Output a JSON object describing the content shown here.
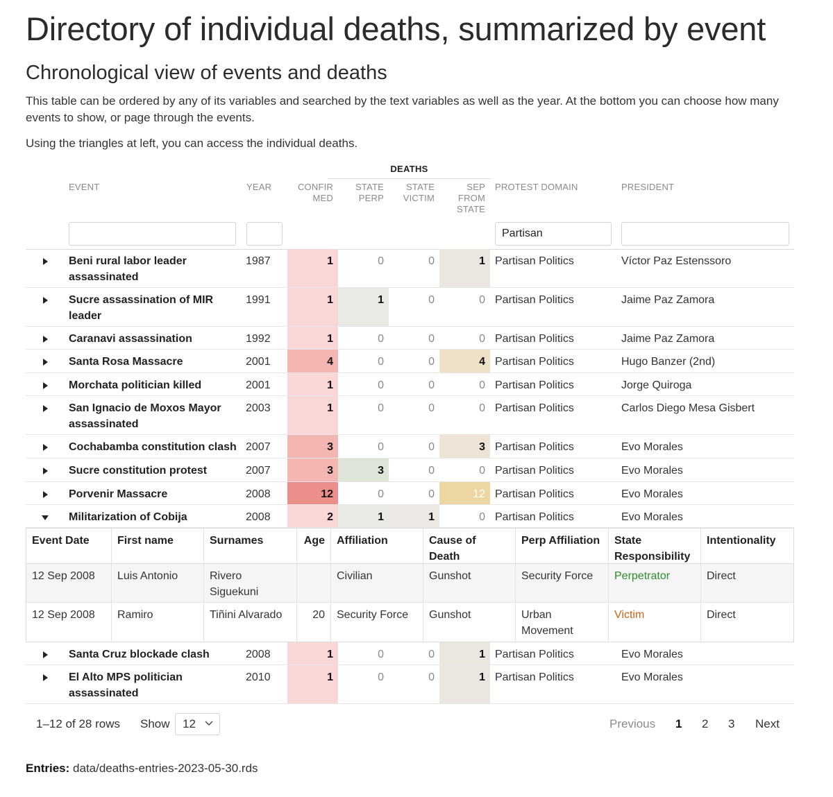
{
  "page": {
    "title": "Directory of individual deaths, summarized by event",
    "subtitle": "Chronological view of events and deaths",
    "intro": "This table can be ordered by any of its variables and searched by the text variables as well as the year. At the bottom you can choose how many events to show, or page through the events.",
    "hint": "Using the triangles at left, you can access the individual deaths."
  },
  "table": {
    "group_header": "DEATHS",
    "headers": {
      "event": "EVENT",
      "year": "YEAR",
      "confirmed": [
        "CONFIR",
        "MED"
      ],
      "state_perp": [
        "STATE",
        "PERP"
      ],
      "state_victim": [
        "STATE",
        "VICTIM"
      ],
      "sep_from_state": [
        "SEP",
        "FROM",
        "STATE"
      ],
      "protest_domain": "PROTEST DOMAIN",
      "president": "PRESIDENT"
    },
    "filters": {
      "event": "",
      "year": "",
      "protest_domain": "Partisan",
      "president": ""
    },
    "colors": {
      "confirmed_base": "#f9d7d6",
      "confirmed_mid": "#f3b6b3",
      "confirmed_high": "#ec8f8a",
      "perp_fill": "#e8eae6",
      "perp_fill_3": "#dde5d8",
      "victim_fill": "#ece8e4",
      "sep_fill": "#ebe6df",
      "sep_fill_3": "#ede4d6",
      "sep_fill_4": "#efe1c7",
      "sep_fill_12": "#ecd7a3",
      "perpetrator_text": "#2e8b2e",
      "victim_text": "#c8641b"
    },
    "rows": [
      {
        "event": [
          "Beni rural labor leader",
          "assassinated"
        ],
        "year": "1987",
        "confirmed": 1,
        "state_perp": 0,
        "state_victim": 0,
        "sep_from_state": 1,
        "protest_domain": "Partisan Politics",
        "president": "Víctor Paz Estenssoro",
        "expanded": false
      },
      {
        "event": [
          "Sucre assassination of MIR",
          "leader"
        ],
        "year": "1991",
        "confirmed": 1,
        "state_perp": 1,
        "state_victim": 0,
        "sep_from_state": 0,
        "protest_domain": "Partisan Politics",
        "president": "Jaime Paz Zamora",
        "expanded": false
      },
      {
        "event": [
          "Caranavi assassination"
        ],
        "year": "1992",
        "confirmed": 1,
        "state_perp": 0,
        "state_victim": 0,
        "sep_from_state": 0,
        "protest_domain": "Partisan Politics",
        "president": "Jaime Paz Zamora",
        "expanded": false
      },
      {
        "event": [
          "Santa Rosa Massacre"
        ],
        "year": "2001",
        "confirmed": 4,
        "state_perp": 0,
        "state_victim": 0,
        "sep_from_state": 4,
        "protest_domain": "Partisan Politics",
        "president": "Hugo Banzer (2nd)",
        "expanded": false
      },
      {
        "event": [
          "Morchata politician killed"
        ],
        "year": "2001",
        "confirmed": 1,
        "state_perp": 0,
        "state_victim": 0,
        "sep_from_state": 0,
        "protest_domain": "Partisan Politics",
        "president": "Jorge Quiroga",
        "expanded": false
      },
      {
        "event": [
          "San Ignacio de Moxos Mayor",
          "assassinated"
        ],
        "year": "2003",
        "confirmed": 1,
        "state_perp": 0,
        "state_victim": 0,
        "sep_from_state": 0,
        "protest_domain": "Partisan Politics",
        "president": "Carlos Diego Mesa Gisbert",
        "expanded": false
      },
      {
        "event": [
          "Cochabamba constitution clash"
        ],
        "year": "2007",
        "confirmed": 3,
        "state_perp": 0,
        "state_victim": 0,
        "sep_from_state": 3,
        "protest_domain": "Partisan Politics",
        "president": "Evo Morales",
        "expanded": false
      },
      {
        "event": [
          "Sucre constitution protest"
        ],
        "year": "2007",
        "confirmed": 3,
        "state_perp": 3,
        "state_victim": 0,
        "sep_from_state": 0,
        "protest_domain": "Partisan Politics",
        "president": "Evo Morales",
        "expanded": false
      },
      {
        "event": [
          "Porvenir Massacre"
        ],
        "year": "2008",
        "confirmed": 12,
        "state_perp": 0,
        "state_victim": 0,
        "sep_from_state": 12,
        "protest_domain": "Partisan Politics",
        "president": "Evo Morales",
        "expanded": false
      },
      {
        "event": [
          "Militarization of Cobija"
        ],
        "year": "2008",
        "confirmed": 2,
        "state_perp": 1,
        "state_victim": 1,
        "sep_from_state": 0,
        "protest_domain": "Partisan Politics",
        "president": "Evo Morales",
        "expanded": true
      },
      {
        "event": [
          "Santa Cruz blockade clash"
        ],
        "year": "2008",
        "confirmed": 1,
        "state_perp": 0,
        "state_victim": 0,
        "sep_from_state": 1,
        "protest_domain": "Partisan Politics",
        "president": "Evo Morales",
        "expanded": false
      },
      {
        "event": [
          "El Alto MPS politician",
          "assassinated"
        ],
        "year": "2010",
        "confirmed": 1,
        "state_perp": 0,
        "state_victim": 0,
        "sep_from_state": 1,
        "protest_domain": "Partisan Politics",
        "president": "Evo Morales",
        "expanded": false
      }
    ],
    "detail": {
      "headers": [
        "Event Date",
        "First name",
        "Surnames",
        "Age",
        "Affiliation",
        "Cause of Death",
        "Perp Affiliation",
        "State Responsibility",
        "Intentionality"
      ],
      "rows": [
        [
          "12 Sep 2008",
          "Luis Antonio",
          "Rivero Siguekuni",
          "",
          "Civilian",
          "Gunshot",
          "Security Force",
          "Perpetrator",
          "Direct"
        ],
        [
          "12 Sep 2008",
          "Ramiro",
          "Tiñini Alvarado",
          "20",
          "Security Force",
          "Gunshot",
          "Urban Movement",
          "Victim",
          "Direct"
        ]
      ]
    }
  },
  "pagination": {
    "summary": "1–12 of 28 rows",
    "show_label": "Show",
    "page_size": "12",
    "previous": "Previous",
    "pages": [
      "1",
      "2",
      "3"
    ],
    "current": "1",
    "next": "Next"
  },
  "entries": {
    "label": "Entries:",
    "value": "data/deaths-entries-2023-05-30.rds"
  }
}
